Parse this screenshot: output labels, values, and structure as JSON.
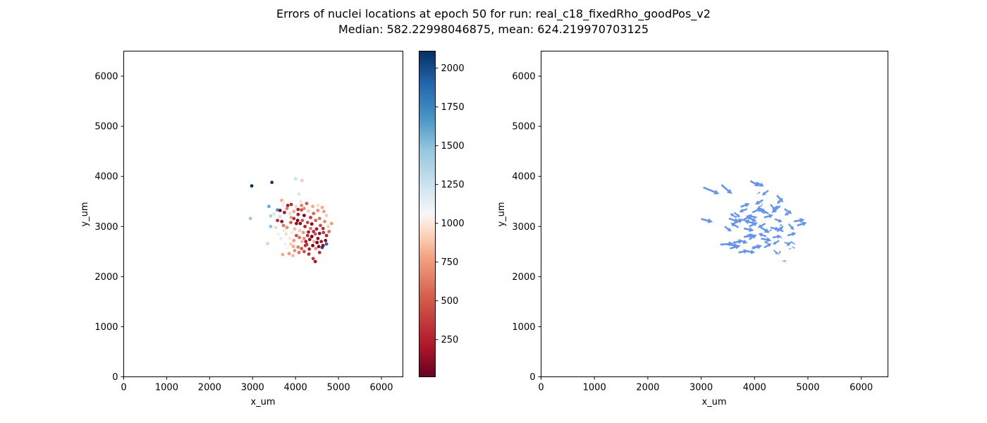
{
  "figure": {
    "title_line1": "Errors of nuclei locations at epoch 50 for run: real_c18_fixedRho_goodPos_v2",
    "title_line2": "Median: 582.22998046875, mean: 624.219970703125"
  },
  "chart_data": [
    {
      "type": "scatter",
      "xlabel": "x_um",
      "ylabel": "y_um",
      "xlim": [
        0,
        6500
      ],
      "ylim": [
        0,
        6500
      ],
      "xticks": [
        0,
        1000,
        2000,
        3000,
        4000,
        5000,
        6000
      ],
      "yticks": [
        0,
        1000,
        2000,
        3000,
        4000,
        5000,
        6000
      ],
      "colorbar": {
        "cmap": "RdBu",
        "range": [
          10,
          2110
        ],
        "ticks": [
          250,
          500,
          750,
          1000,
          1250,
          1500,
          1750,
          2000
        ]
      },
      "points": [
        [
          2980,
          3810,
          2100
        ],
        [
          3450,
          3880,
          2050
        ],
        [
          2950,
          3160,
          1450
        ],
        [
          3380,
          3400,
          1600
        ],
        [
          3580,
          3330,
          1700
        ],
        [
          3420,
          3000,
          1500
        ],
        [
          3350,
          2660,
          1300
        ],
        [
          3420,
          3210,
          1400
        ],
        [
          3700,
          3410,
          1100
        ],
        [
          3900,
          3440,
          300
        ],
        [
          3820,
          3420,
          200
        ],
        [
          4000,
          3950,
          1250
        ],
        [
          4150,
          3920,
          900
        ],
        [
          4080,
          3650,
          1200
        ],
        [
          4120,
          3500,
          1000
        ],
        [
          3680,
          3520,
          800
        ],
        [
          3720,
          3480,
          1000
        ],
        [
          3800,
          3360,
          650
        ],
        [
          3640,
          3320,
          100
        ],
        [
          3740,
          3280,
          200
        ],
        [
          3870,
          3260,
          950
        ],
        [
          3960,
          3300,
          800
        ],
        [
          4060,
          3340,
          250
        ],
        [
          4140,
          3330,
          450
        ],
        [
          4200,
          3360,
          700
        ],
        [
          4300,
          3310,
          900
        ],
        [
          4420,
          3260,
          550
        ],
        [
          4520,
          3320,
          700
        ],
        [
          4620,
          3380,
          800
        ],
        [
          4720,
          3220,
          900
        ],
        [
          4840,
          3060,
          750
        ],
        [
          4760,
          3000,
          900
        ],
        [
          3580,
          3120,
          300
        ],
        [
          3680,
          3100,
          150
        ],
        [
          3720,
          3020,
          600
        ],
        [
          3800,
          2980,
          700
        ],
        [
          3890,
          3080,
          500
        ],
        [
          3960,
          3160,
          300
        ],
        [
          4050,
          3120,
          60
        ],
        [
          4110,
          3060,
          120
        ],
        [
          4160,
          3120,
          500
        ],
        [
          4220,
          3000,
          250
        ],
        [
          4280,
          3080,
          400
        ],
        [
          4350,
          2960,
          600
        ],
        [
          4420,
          2900,
          300
        ],
        [
          4490,
          2950,
          200
        ],
        [
          4580,
          3020,
          450
        ],
        [
          4650,
          2880,
          350
        ],
        [
          4700,
          2720,
          100
        ],
        [
          4720,
          2650,
          1900
        ],
        [
          4620,
          2580,
          2000
        ],
        [
          4540,
          2600,
          100
        ],
        [
          4470,
          2560,
          700
        ],
        [
          4430,
          2700,
          800
        ],
        [
          4380,
          2800,
          40
        ],
        [
          4330,
          2740,
          150
        ],
        [
          4280,
          2820,
          300
        ],
        [
          4200,
          2760,
          700
        ],
        [
          4150,
          2700,
          850
        ],
        [
          4090,
          2780,
          600
        ],
        [
          4020,
          2820,
          450
        ],
        [
          3960,
          2720,
          750
        ],
        [
          3890,
          2650,
          900
        ],
        [
          3830,
          2580,
          1050
        ],
        [
          3760,
          2650,
          1100
        ],
        [
          3700,
          2440,
          800
        ],
        [
          3850,
          2460,
          750
        ],
        [
          3980,
          2520,
          700
        ],
        [
          4060,
          2590,
          650
        ],
        [
          4140,
          2560,
          500
        ],
        [
          4230,
          2620,
          300
        ],
        [
          4310,
          2450,
          300
        ],
        [
          4410,
          2360,
          350
        ],
        [
          4460,
          2300,
          200
        ],
        [
          4560,
          2480,
          300
        ],
        [
          4640,
          2620,
          80
        ],
        [
          4520,
          2760,
          150
        ],
        [
          4460,
          2850,
          500
        ],
        [
          4300,
          2890,
          200
        ],
        [
          4260,
          2640,
          350
        ],
        [
          4180,
          2880,
          750
        ],
        [
          4100,
          2920,
          900
        ],
        [
          3980,
          2950,
          850
        ],
        [
          3920,
          2880,
          1000
        ],
        [
          3780,
          2850,
          950
        ],
        [
          3660,
          2760,
          1150
        ],
        [
          3600,
          2840,
          1100
        ],
        [
          3540,
          2980,
          950
        ],
        [
          3500,
          3250,
          1200
        ],
        [
          3640,
          3200,
          1250
        ],
        [
          4010,
          3400,
          950
        ],
        [
          4200,
          3220,
          60
        ],
        [
          4350,
          3180,
          350
        ],
        [
          4470,
          3120,
          550
        ],
        [
          4560,
          3160,
          600
        ],
        [
          4680,
          3100,
          700
        ],
        [
          4720,
          2820,
          250
        ],
        [
          4600,
          2700,
          200
        ],
        [
          4500,
          2680,
          40
        ],
        [
          4400,
          2620,
          60
        ],
        [
          4320,
          2550,
          250
        ],
        [
          4200,
          2500,
          450
        ],
        [
          4080,
          2480,
          600
        ],
        [
          3940,
          2420,
          850
        ],
        [
          3860,
          2760,
          1000
        ],
        [
          3730,
          2920,
          1150
        ],
        [
          3900,
          3180,
          750
        ],
        [
          4060,
          3240,
          200
        ],
        [
          4140,
          3420,
          650
        ],
        [
          4260,
          3460,
          500
        ],
        [
          4400,
          3400,
          800
        ],
        [
          4520,
          3420,
          950
        ],
        [
          4660,
          3300,
          750
        ],
        [
          4780,
          2900,
          600
        ],
        [
          4640,
          2960,
          300
        ],
        [
          4380,
          3050,
          80
        ],
        [
          4020,
          3060,
          120
        ],
        [
          3950,
          2600,
          800
        ],
        [
          4240,
          2700,
          200
        ],
        [
          4560,
          2860,
          120
        ]
      ]
    },
    {
      "type": "quiver",
      "xlabel": "x_um",
      "ylabel": "y_um",
      "xlim": [
        0,
        6500
      ],
      "ylim": [
        0,
        6500
      ],
      "xticks": [
        0,
        1000,
        2000,
        3000,
        4000,
        5000,
        6000
      ],
      "yticks": [
        0,
        1000,
        2000,
        3000,
        4000,
        5000,
        6000
      ],
      "color": "#6495ED",
      "arrows": [
        [
          3040,
          3780,
          300,
          -130
        ],
        [
          3380,
          3830,
          200,
          -180
        ],
        [
          3000,
          3150,
          220,
          -60
        ],
        [
          3920,
          3910,
          180,
          -110
        ],
        [
          4030,
          3880,
          150,
          -80
        ],
        [
          4260,
          3720,
          -120,
          -100
        ],
        [
          4420,
          3620,
          120,
          -140
        ],
        [
          4520,
          3560,
          -100,
          -110
        ],
        [
          4160,
          3530,
          -150,
          -90
        ],
        [
          4300,
          3440,
          100,
          -130
        ],
        [
          4480,
          3410,
          -160,
          -140
        ],
        [
          4560,
          3350,
          140,
          -100
        ],
        [
          4680,
          3300,
          -120,
          -80
        ],
        [
          4740,
          3100,
          200,
          40
        ],
        [
          4800,
          3020,
          180,
          60
        ],
        [
          4640,
          3050,
          100,
          -120
        ],
        [
          4380,
          3150,
          140,
          -60
        ],
        [
          4260,
          3260,
          -180,
          90
        ],
        [
          4080,
          3330,
          160,
          -60
        ],
        [
          3960,
          3280,
          180,
          90
        ],
        [
          3860,
          3350,
          -150,
          -60
        ],
        [
          3740,
          3390,
          170,
          70
        ],
        [
          3620,
          3280,
          110,
          -100
        ],
        [
          3520,
          3160,
          200,
          -70
        ],
        [
          3440,
          3000,
          130,
          -100
        ],
        [
          3590,
          3050,
          200,
          100
        ],
        [
          3700,
          2980,
          -150,
          90
        ],
        [
          3800,
          2960,
          190,
          -40
        ],
        [
          3900,
          3000,
          160,
          80
        ],
        [
          4000,
          3060,
          -200,
          60
        ],
        [
          4110,
          2990,
          170,
          -120
        ],
        [
          4200,
          3060,
          -140,
          -90
        ],
        [
          4300,
          2980,
          160,
          -40
        ],
        [
          4420,
          2900,
          120,
          100
        ],
        [
          4540,
          2900,
          -140,
          60
        ],
        [
          4620,
          2820,
          160,
          50
        ],
        [
          4700,
          2700,
          -100,
          -90
        ],
        [
          4760,
          2640,
          -60,
          50
        ],
        [
          4560,
          2680,
          120,
          -30
        ],
        [
          4460,
          2720,
          -120,
          -80
        ],
        [
          4340,
          2780,
          160,
          30
        ],
        [
          4220,
          2800,
          -150,
          60
        ],
        [
          4120,
          2760,
          200,
          -40
        ],
        [
          4010,
          2800,
          -160,
          30
        ],
        [
          3900,
          2740,
          140,
          100
        ],
        [
          3800,
          2790,
          210,
          40
        ],
        [
          3700,
          2730,
          170,
          -60
        ],
        [
          3600,
          2680,
          180,
          30
        ],
        [
          3460,
          2650,
          240,
          -40
        ],
        [
          3360,
          2640,
          250,
          20
        ],
        [
          3540,
          2560,
          200,
          60
        ],
        [
          3700,
          2480,
          180,
          40
        ],
        [
          3840,
          2510,
          170,
          -30
        ],
        [
          3960,
          2560,
          180,
          60
        ],
        [
          4060,
          2620,
          -120,
          -60
        ],
        [
          4180,
          2580,
          140,
          80
        ],
        [
          4280,
          2640,
          -100,
          70
        ],
        [
          4360,
          2530,
          80,
          -90
        ],
        [
          4450,
          2440,
          40,
          80
        ],
        [
          4520,
          2310,
          80,
          0
        ],
        [
          4640,
          2540,
          50,
          30
        ],
        [
          4700,
          2600,
          60,
          -40
        ],
        [
          3880,
          3180,
          160,
          -80
        ],
        [
          4040,
          3180,
          -180,
          40
        ],
        [
          4180,
          3180,
          170,
          50
        ],
        [
          3780,
          3120,
          150,
          100
        ],
        [
          3660,
          3180,
          -120,
          80
        ],
        [
          4340,
          3340,
          110,
          70
        ],
        [
          4140,
          3420,
          -80,
          -50
        ],
        [
          4600,
          3220,
          40,
          30
        ],
        [
          4050,
          3650,
          60,
          40
        ],
        [
          4120,
          3470,
          40,
          -30
        ],
        [
          4540,
          3000,
          -70,
          40
        ],
        [
          4260,
          2900,
          70,
          40
        ],
        [
          4460,
          2800,
          60,
          -30
        ]
      ]
    }
  ]
}
